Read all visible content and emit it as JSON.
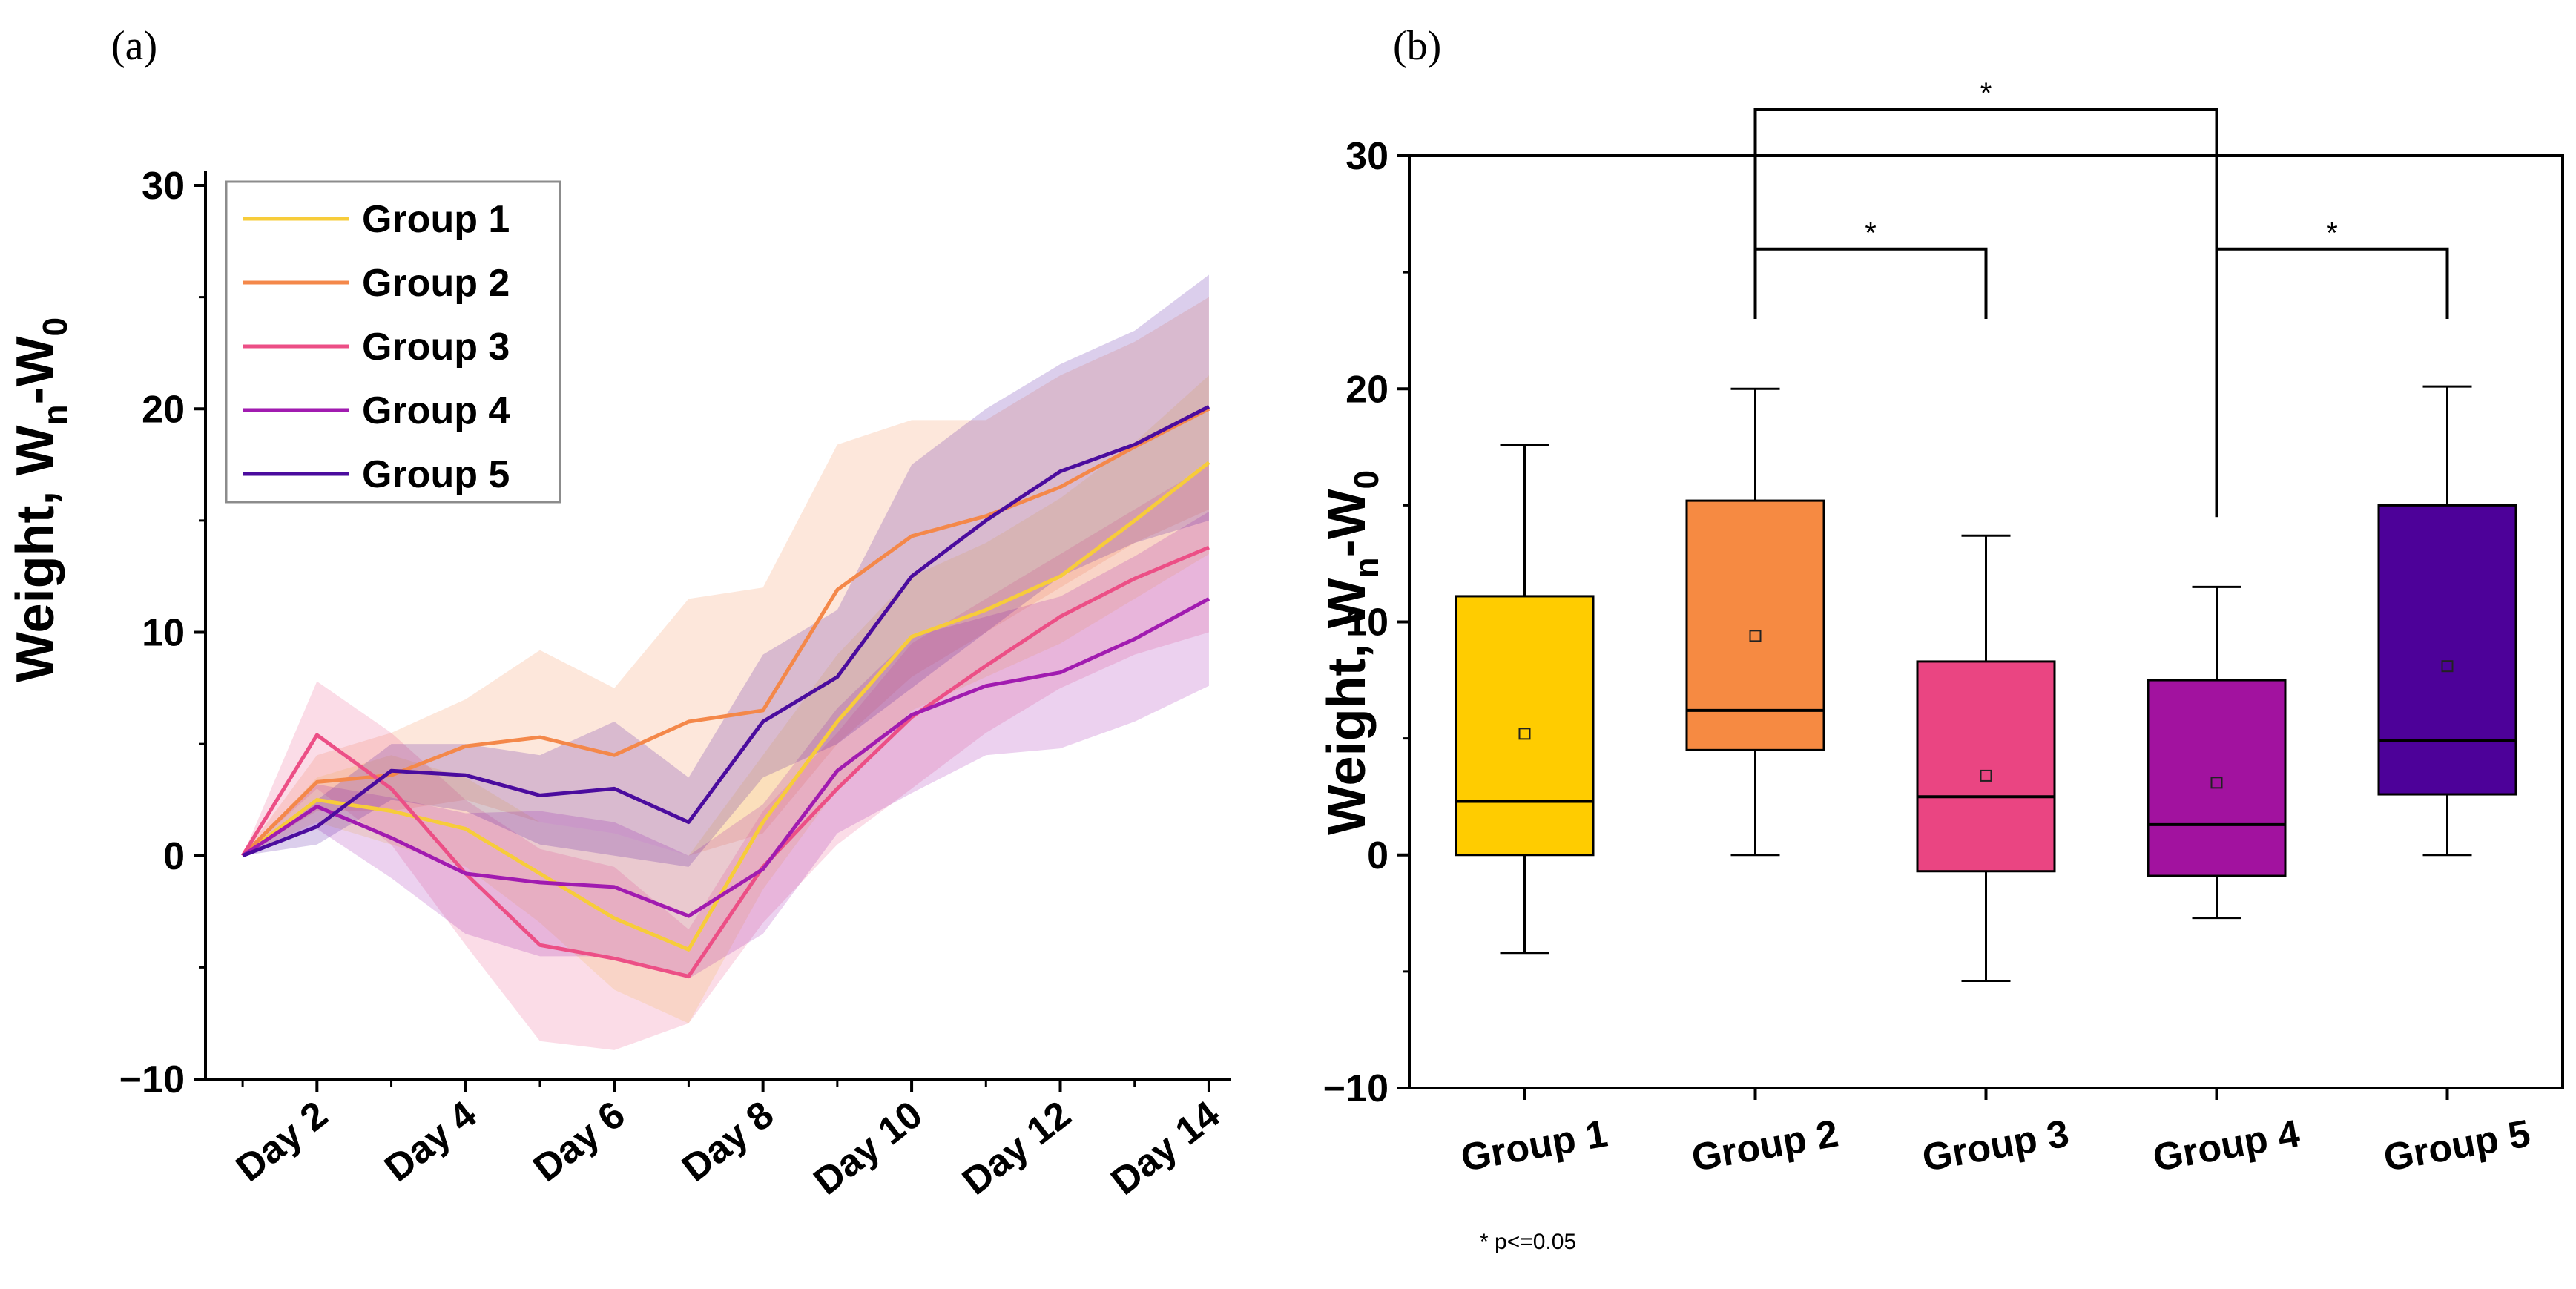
{
  "chart_data": [
    {
      "panel": "(a)",
      "type": "line",
      "title": "",
      "xlabel": "",
      "ylabel": "Weight, W",
      "ylabel_sub1": "n",
      "ylabel_mid": "-W",
      "ylabel_sub2": "0",
      "ylim": [
        -10,
        30
      ],
      "yticks": [
        "30",
        "20",
        "10",
        "0",
        "−10"
      ],
      "ytick_values": [
        30,
        20,
        10,
        0,
        -10
      ],
      "x": [
        1,
        2,
        3,
        4,
        5,
        6,
        7,
        8,
        9,
        10,
        11,
        12,
        13,
        14
      ],
      "xlim": [
        0.5,
        14.3
      ],
      "xtick_labels": [
        "Day 2",
        "Day 4",
        "Day 6",
        "Day 8",
        "Day 10",
        "Day 12",
        "Day 14"
      ],
      "xtick_positions": [
        2,
        4,
        6,
        8,
        10,
        12,
        14
      ],
      "legend_position": "top-left",
      "series": [
        {
          "name": "Group 1",
          "color": "#F7CC3A",
          "values": [
            0,
            2.5,
            2.0,
            1.2,
            -0.8,
            -2.8,
            -4.2,
            1.5,
            6.0,
            9.8,
            11.0,
            12.5,
            15.0,
            17.6
          ],
          "lower": [
            0,
            1.5,
            0.5,
            -0.5,
            -3.0,
            -6.0,
            -7.5,
            -1.5,
            3.0,
            6.5,
            8.0,
            9.5,
            11.5,
            13.5
          ],
          "upper": [
            0,
            3.5,
            4.5,
            3.5,
            1.5,
            1.0,
            0.0,
            4.5,
            9.0,
            12.5,
            14.0,
            16.0,
            18.5,
            21.5
          ]
        },
        {
          "name": "Group 2",
          "color": "#F4884A",
          "values": [
            0,
            3.3,
            3.6,
            4.9,
            5.3,
            4.5,
            6.0,
            6.5,
            11.9,
            14.3,
            15.2,
            16.5,
            18.3,
            20.0
          ],
          "lower": [
            0,
            2.0,
            2.0,
            2.5,
            1.5,
            1.0,
            0.0,
            1.0,
            5.0,
            8.0,
            10.0,
            12.0,
            14.0,
            15.5
          ],
          "upper": [
            0,
            4.5,
            5.5,
            7.0,
            9.2,
            7.5,
            11.5,
            12.0,
            18.4,
            19.5,
            19.5,
            21.5,
            23.0,
            25.0
          ]
        },
        {
          "name": "Group 3",
          "color": "#EC4F86",
          "values": [
            0,
            5.4,
            3.0,
            -0.8,
            -4.0,
            -4.6,
            -5.4,
            -0.5,
            3.0,
            6.2,
            8.5,
            10.7,
            12.4,
            13.8
          ],
          "lower": [
            0,
            3.0,
            0.5,
            -4.0,
            -8.3,
            -8.7,
            -7.5,
            -3.0,
            0.5,
            3.0,
            5.5,
            7.5,
            9.0,
            10.0
          ],
          "upper": [
            0,
            7.8,
            5.5,
            2.5,
            0.3,
            -0.5,
            -3.3,
            2.0,
            5.5,
            9.5,
            11.5,
            13.5,
            15.5,
            17.5
          ]
        },
        {
          "name": "Group 4",
          "color": "#A11BB0",
          "values": [
            0,
            2.2,
            0.8,
            -0.8,
            -1.2,
            -1.4,
            -2.7,
            -0.6,
            3.8,
            6.3,
            7.6,
            8.2,
            9.7,
            11.5
          ],
          "lower": [
            0,
            1.2,
            -1.0,
            -3.5,
            -4.5,
            -4.5,
            -5.5,
            -3.5,
            1.0,
            2.8,
            4.5,
            4.8,
            6.0,
            7.6
          ],
          "upper": [
            0,
            3.2,
            2.6,
            1.9,
            2.0,
            1.5,
            0.0,
            2.3,
            6.6,
            9.8,
            10.7,
            11.6,
            13.4,
            15.4
          ]
        },
        {
          "name": "Group 5",
          "color": "#4B0C9E",
          "values": [
            0,
            1.3,
            3.8,
            3.6,
            2.7,
            3.0,
            1.5,
            6.0,
            8.0,
            12.5,
            15.0,
            17.2,
            18.4,
            20.1
          ],
          "lower": [
            0,
            0.5,
            2.5,
            2.0,
            0.5,
            0.0,
            -0.5,
            3.5,
            5.0,
            7.5,
            10.0,
            12.5,
            14.0,
            15.0
          ],
          "upper": [
            0,
            2.5,
            5.0,
            5.0,
            4.5,
            6.0,
            3.5,
            9.0,
            11.0,
            17.5,
            20.0,
            22.0,
            23.5,
            26.0
          ]
        }
      ]
    },
    {
      "panel": "(b)",
      "type": "box",
      "title": "",
      "xlabel": "",
      "ylabel": "Weight, W",
      "ylabel_sub1": "n",
      "ylabel_mid": "-W",
      "ylabel_sub2": "0",
      "ylim": [
        -10,
        30
      ],
      "yticks": [
        "30",
        "20",
        "10",
        "0",
        "−10"
      ],
      "ytick_values": [
        30,
        20,
        10,
        0,
        -10
      ],
      "categories": [
        "Group 1",
        "Group 2",
        "Group 3",
        "Group 4",
        "Group 5"
      ],
      "boxes": [
        {
          "name": "Group 1",
          "color": "#FFCC00",
          "whisker_low": -4.2,
          "q1": 0.0,
          "median": 2.3,
          "q3": 11.1,
          "whisker_high": 17.6,
          "mean": 5.2
        },
        {
          "name": "Group 2",
          "color": "#F68A42",
          "whisker_low": 0.0,
          "q1": 4.5,
          "median": 6.2,
          "q3": 15.2,
          "whisker_high": 20.0,
          "mean": 9.4
        },
        {
          "name": "Group 3",
          "color": "#EA4582",
          "whisker_low": -5.4,
          "q1": -0.7,
          "median": 2.5,
          "q3": 8.3,
          "whisker_high": 13.7,
          "mean": 3.4
        },
        {
          "name": "Group 4",
          "color": "#A2129F",
          "whisker_low": -2.7,
          "q1": -0.9,
          "median": 1.3,
          "q3": 7.5,
          "whisker_high": 11.5,
          "mean": 3.1
        },
        {
          "name": "Group 5",
          "color": "#4D0199",
          "whisker_low": 0.0,
          "q1": 2.6,
          "median": 4.9,
          "q3": 15.0,
          "whisker_high": 20.1,
          "mean": 8.1
        }
      ],
      "significance": [
        {
          "from": 1,
          "to": 3,
          "left_bottom": 23.0,
          "right_bottom": 14.5,
          "top": 32.0,
          "label": "*"
        },
        {
          "from": 1,
          "to": 2,
          "left_bottom": 23.0,
          "right_bottom": 23.0,
          "top": 26.0,
          "label": "*"
        },
        {
          "from": 3,
          "to": 4,
          "left_bottom": 14.5,
          "right_bottom": 23.0,
          "top": 26.0,
          "label": "*"
        }
      ],
      "footnote": "* p<=0.05"
    }
  ]
}
